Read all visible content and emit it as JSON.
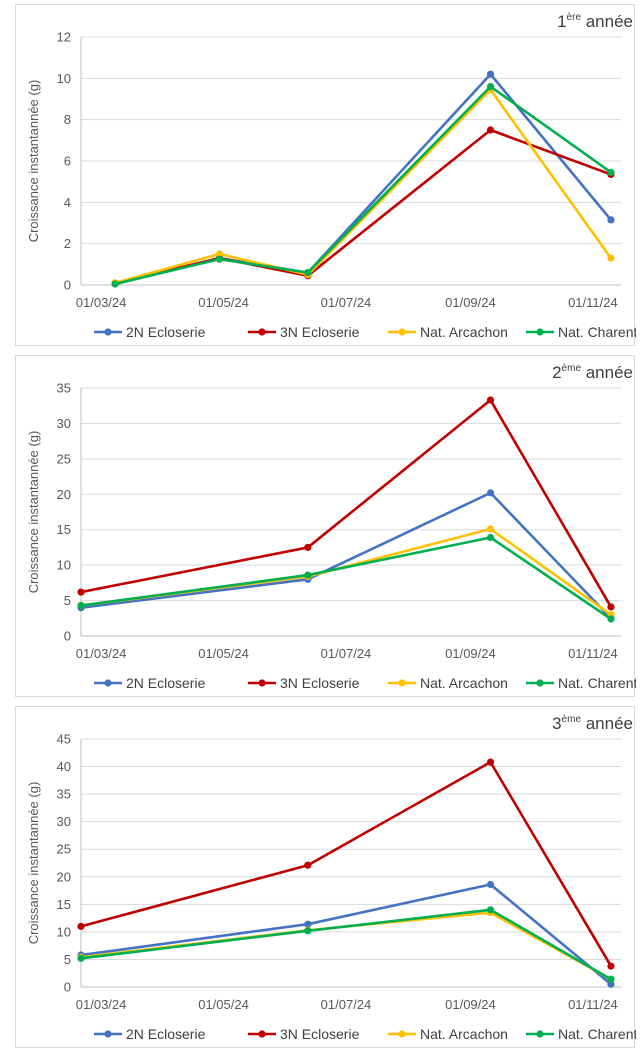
{
  "charts": [
    {
      "type": "line",
      "title_main": "1",
      "title_sup": "ère",
      "title_rest": " année",
      "ylabel": "Croissance instantannée (g)",
      "ylim": [
        0,
        12
      ],
      "yticks": [
        0,
        2,
        4,
        6,
        8,
        10,
        12
      ],
      "x_ticks": [
        "01/03/24",
        "01/05/24",
        "01/07/24",
        "01/09/24",
        "01/11/24"
      ],
      "x_dates": [
        "2024-03-08",
        "2024-04-29",
        "2024-06-12",
        "2024-09-11",
        "2024-11-10"
      ],
      "series": [
        {
          "name": "2N Ecloserie",
          "color": "#4472C4",
          "values": [
            0.05,
            1.3,
            0.6,
            10.2,
            3.15
          ]
        },
        {
          "name": "3N Ecloserie",
          "color": "#C00000",
          "values": [
            0.1,
            1.3,
            0.45,
            7.5,
            5.35
          ]
        },
        {
          "name": "Nat. Arcachon",
          "color": "#FFC000",
          "values": [
            0.1,
            1.5,
            0.5,
            9.45,
            1.3
          ]
        },
        {
          "name": "Nat. Charente",
          "color": "#00B050",
          "values": [
            0.05,
            1.25,
            0.6,
            9.6,
            5.45
          ]
        }
      ]
    },
    {
      "type": "line",
      "title_main": "2",
      "title_sup": "ème",
      "title_rest": " année",
      "ylabel": "Croissance instantannée (g)",
      "ylim": [
        0,
        35
      ],
      "yticks": [
        0,
        5,
        10,
        15,
        20,
        25,
        30,
        35
      ],
      "x_ticks": [
        "01/03/24",
        "01/05/24",
        "01/07/24",
        "01/09/24",
        "01/11/24"
      ],
      "x_dates": [
        "2024-02-20",
        "2024-06-12",
        "2024-09-11",
        "2024-11-10"
      ],
      "series": [
        {
          "name": "2N Ecloserie",
          "color": "#4472C4",
          "values": [
            4.0,
            8.0,
            20.2,
            2.5
          ]
        },
        {
          "name": "3N Ecloserie",
          "color": "#C00000",
          "values": [
            6.2,
            12.5,
            33.3,
            4.1
          ]
        },
        {
          "name": "Nat. Arcachon",
          "color": "#FFC000",
          "values": [
            4.3,
            8.4,
            15.1,
            3.0
          ]
        },
        {
          "name": "Nat. Charente",
          "color": "#00B050",
          "values": [
            4.3,
            8.6,
            13.9,
            2.4
          ]
        }
      ]
    },
    {
      "type": "line",
      "title_main": "3",
      "title_sup": "ème",
      "title_rest": " année",
      "ylabel": "Croissance instantannée (g)",
      "ylim": [
        0,
        45
      ],
      "yticks": [
        0,
        5,
        10,
        15,
        20,
        25,
        30,
        35,
        40,
        45
      ],
      "x_ticks": [
        "01/03/24",
        "01/05/24",
        "01/07/24",
        "01/09/24",
        "01/11/24"
      ],
      "x_dates": [
        "2024-02-20",
        "2024-06-12",
        "2024-09-11",
        "2024-11-10"
      ],
      "series": [
        {
          "name": "2N Ecloserie",
          "color": "#4472C4",
          "values": [
            5.8,
            11.4,
            18.6,
            0.5
          ]
        },
        {
          "name": "3N Ecloserie",
          "color": "#C00000",
          "values": [
            11.0,
            22.1,
            40.8,
            3.8
          ]
        },
        {
          "name": "Nat. Arcachon",
          "color": "#FFC000",
          "values": [
            5.4,
            10.3,
            13.5,
            1.4
          ]
        },
        {
          "name": "Nat. Charente",
          "color": "#00B050",
          "values": [
            5.2,
            10.2,
            14.0,
            1.4
          ]
        }
      ]
    }
  ]
}
